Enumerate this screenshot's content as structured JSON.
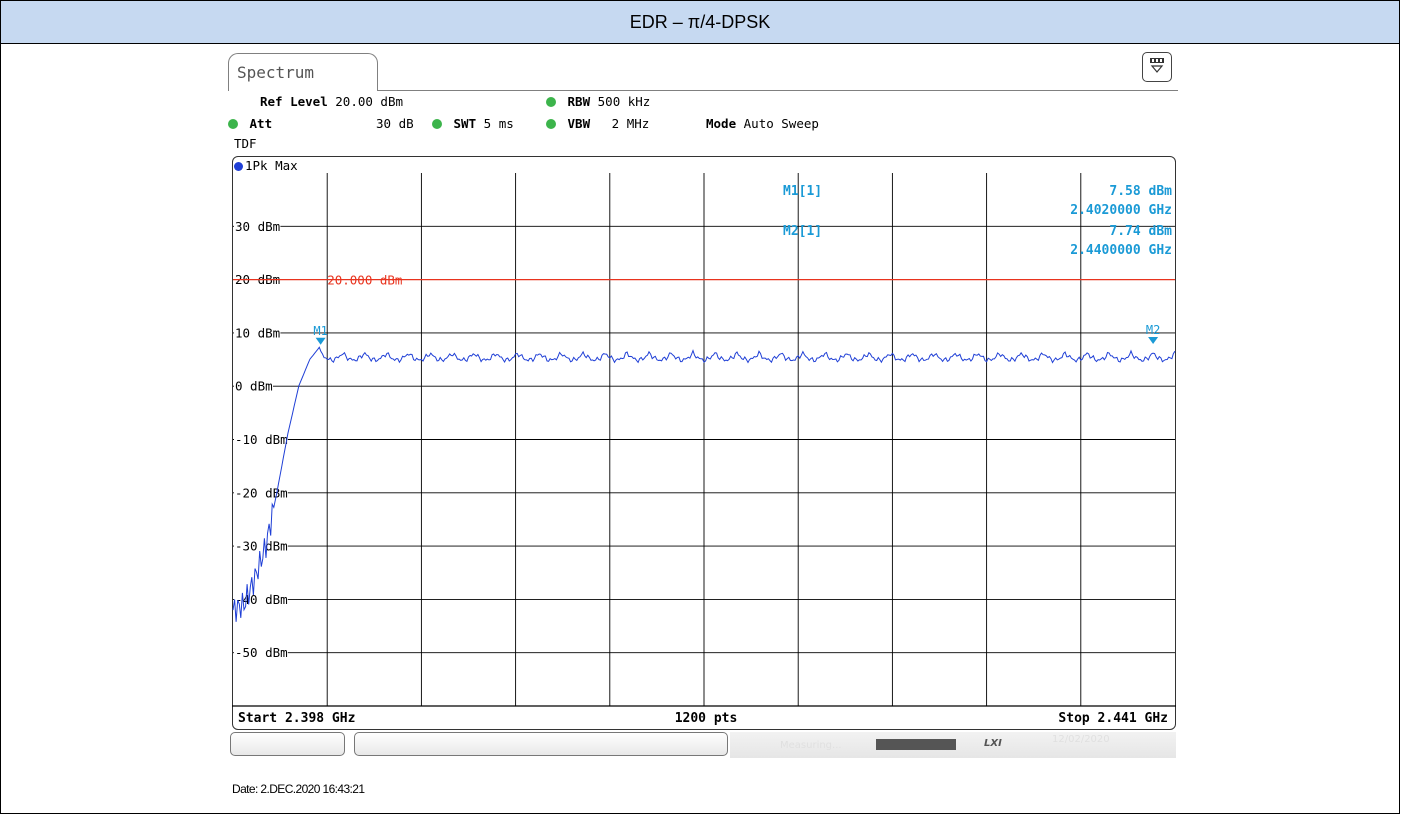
{
  "title": "EDR – π/4-DPSK",
  "analyzer": {
    "tab_label": "Spectrum",
    "settings": {
      "ref_level_label": "Ref Level",
      "ref_level_value": "20.00 dBm",
      "rbw_label": "RBW",
      "rbw_value": "500 kHz",
      "att_label": "Att",
      "att_value": "30 dB",
      "swt_label": "SWT",
      "swt_value": "5 ms",
      "vbw_label": "VBW",
      "vbw_value": "2 MHz",
      "mode_label": "Mode",
      "mode_value": "Auto Sweep",
      "tdf_label": "TDF"
    },
    "trace_label": "1Pk Max",
    "markers": {
      "m1_label": "M1[1]",
      "m1_level": "7.58 dBm",
      "m1_freq": "2.4020000 GHz",
      "m2_label": "M2[1]",
      "m2_level": "7.74 dBm",
      "m2_freq": "2.4400000 GHz",
      "m1_tag": "M1",
      "m2_tag": "M2"
    },
    "limit_line_label": "20.000 dBm",
    "footer": {
      "start": "Start 2.398 GHz",
      "points": "1200 pts",
      "stop": "Stop 2.441 GHz"
    },
    "status": {
      "measuring": "Measuring...",
      "lxi": "LXI",
      "date": "12/02/2020"
    }
  },
  "date_line": "Date: 2.DEC.2020  16:43:21",
  "chart_data": {
    "type": "line",
    "title": "",
    "xlabel": "",
    "ylabel": "",
    "x_range_ghz": [
      2.398,
      2.441
    ],
    "ylim": [
      -60,
      40
    ],
    "y_ticks": [
      {
        "value": 30,
        "label": "30 dBm"
      },
      {
        "value": 20,
        "label": "20 dBm"
      },
      {
        "value": 10,
        "label": "10 dBm"
      },
      {
        "value": 0,
        "label": "0 dBm"
      },
      {
        "value": -10,
        "label": "-10 dBm"
      },
      {
        "value": -20,
        "label": "-20 dBm"
      },
      {
        "value": -30,
        "label": "-30 dBm"
      },
      {
        "value": -40,
        "label": "-40 dBm"
      },
      {
        "value": -50,
        "label": "-50 dBm"
      }
    ],
    "limit_line_dbm": 20,
    "grid": true,
    "series": [
      {
        "name": "1Pk Max",
        "color": "#1f3fd6",
        "x": [
          2.398,
          2.3985,
          2.399,
          2.3995,
          2.4,
          2.4005,
          2.401,
          2.4015,
          2.402,
          2.404,
          2.406,
          2.408,
          2.41,
          2.412,
          2.414,
          2.416,
          2.418,
          2.42,
          2.422,
          2.424,
          2.426,
          2.428,
          2.43,
          2.432,
          2.434,
          2.436,
          2.438,
          2.44,
          2.441
        ],
        "y": [
          -42,
          -41,
          -36,
          -30,
          -20,
          -9,
          0,
          5,
          7.6,
          5.5,
          6.5,
          5.8,
          6.4,
          5.6,
          6.6,
          5.7,
          6.3,
          5.8,
          6.5,
          5.6,
          6.4,
          5.9,
          6.6,
          5.7,
          6.3,
          5.8,
          6.5,
          7.7,
          6.0
        ]
      }
    ],
    "markers": [
      {
        "name": "M1",
        "x": 2.402,
        "y": 7.58
      },
      {
        "name": "M2",
        "x": 2.44,
        "y": 7.74
      }
    ]
  },
  "colors": {
    "title_bar": "#c6d9f1",
    "trace": "#1f3fd6",
    "limit_line": "#e8331e",
    "marker_text": "#1a9ad6",
    "status_dot": "#3cb44b"
  }
}
